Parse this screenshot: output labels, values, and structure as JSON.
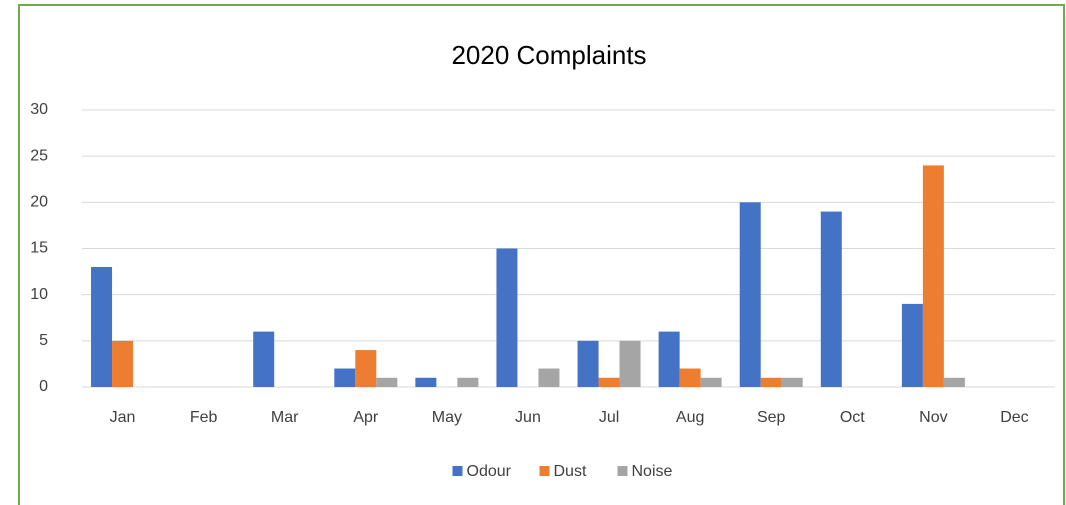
{
  "chart_data": {
    "type": "bar",
    "title": "2020 Complaints",
    "categories": [
      "Jan",
      "Feb",
      "Mar",
      "Apr",
      "May",
      "Jun",
      "Jul",
      "Aug",
      "Sep",
      "Oct",
      "Nov",
      "Dec"
    ],
    "series": [
      {
        "name": "Odour",
        "color": "#4472c4",
        "values": [
          13,
          0,
          6,
          2,
          1,
          15,
          5,
          6,
          20,
          19,
          9,
          0
        ]
      },
      {
        "name": "Dust",
        "color": "#ed7d31",
        "values": [
          5,
          0,
          0,
          4,
          0,
          0,
          1,
          2,
          1,
          0,
          24,
          0
        ]
      },
      {
        "name": "Noise",
        "color": "#a5a5a5",
        "values": [
          0,
          0,
          0,
          1,
          1,
          2,
          5,
          1,
          1,
          0,
          1,
          0
        ]
      }
    ],
    "ylim": [
      0,
      30
    ],
    "yticks": [
      0,
      5,
      10,
      15,
      20,
      25,
      30
    ],
    "grid": true,
    "legend": "bottom"
  }
}
